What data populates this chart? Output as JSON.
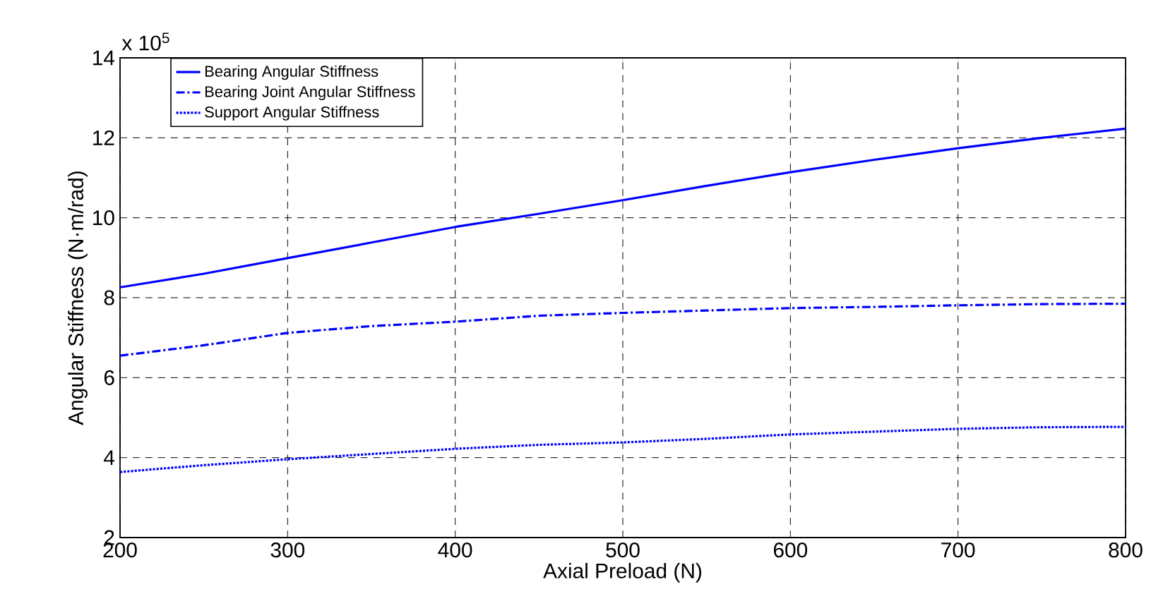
{
  "chart_data": {
    "type": "line",
    "xlabel": "Axial Preload (N)",
    "ylabel": "Angular Stiffness (N·m/rad)",
    "annotations": [
      "x 10$^{5}$"
    ],
    "xlim": [
      200,
      800
    ],
    "xticks": [
      200,
      300,
      400,
      500,
      600,
      700,
      800
    ],
    "ylim": [
      2,
      14
    ],
    "yticks": [
      2,
      4,
      6,
      8,
      10,
      12,
      14
    ],
    "grid": true,
    "legend": "top left",
    "marker": "none",
    "x": [
      200,
      250,
      300,
      350,
      400,
      450,
      500,
      550,
      600,
      650,
      700,
      750,
      800
    ],
    "series": [
      {
        "name": "Bearing Angular Stiffness",
        "color": "#0000ff",
        "line_style": "solid",
        "values": [
          8.26,
          8.6,
          8.99,
          9.38,
          9.77,
          10.1,
          10.44,
          10.8,
          11.14,
          11.45,
          11.74,
          12.0,
          12.23
        ]
      },
      {
        "name": "Bearing Joint Angular Stiffness",
        "color": "#0000ff",
        "line_style": "dashdot",
        "values": [
          6.55,
          6.81,
          7.12,
          7.29,
          7.4,
          7.55,
          7.62,
          7.68,
          7.74,
          7.77,
          7.81,
          7.84,
          7.85
        ]
      },
      {
        "name": "Support Angular Stiffness",
        "color": "#0000ff",
        "line_style": "dotted",
        "values": [
          3.64,
          3.81,
          3.96,
          4.09,
          4.22,
          4.32,
          4.38,
          4.47,
          4.58,
          4.65,
          4.72,
          4.76,
          4.77
        ]
      }
    ]
  }
}
